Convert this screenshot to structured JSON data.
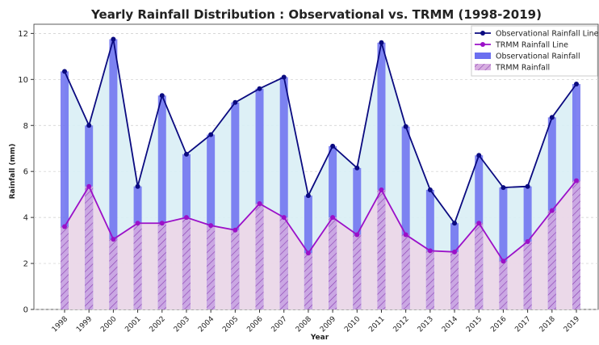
{
  "chart_data": {
    "type": "bar_line",
    "title": "Yearly Rainfall Distribution : Observational vs. TRMM (1998-2019)",
    "x_label": "Year",
    "y_label": "Rainfall (mm)",
    "categories": [
      "1998",
      "1999",
      "2000",
      "2001",
      "2002",
      "2003",
      "2004",
      "2005",
      "2006",
      "2007",
      "2008",
      "2009",
      "2010",
      "2011",
      "2012",
      "2013",
      "2014",
      "2015",
      "2016",
      "2017",
      "2018",
      "2019"
    ],
    "series": [
      {
        "name": "Observational Rainfall Line",
        "kind": "line",
        "color": "#0a0a80",
        "fill": "#d9eef5",
        "values": [
          10.35,
          8.0,
          11.75,
          5.35,
          9.3,
          6.75,
          7.6,
          9.0,
          9.6,
          10.1,
          4.95,
          7.1,
          6.15,
          11.6,
          7.95,
          5.2,
          3.75,
          6.7,
          5.3,
          5.35,
          8.35,
          9.8
        ]
      },
      {
        "name": "TRMM Rainfall Line",
        "kind": "line",
        "color": "#9b10c8",
        "fill": "#ecd6e8",
        "values": [
          3.6,
          5.35,
          3.05,
          3.75,
          3.75,
          4.0,
          3.65,
          3.45,
          4.6,
          4.0,
          2.45,
          4.0,
          3.25,
          5.2,
          3.25,
          2.55,
          2.5,
          3.75,
          2.1,
          2.95,
          4.3,
          5.6
        ]
      },
      {
        "name": "Observational Rainfall",
        "kind": "bar",
        "color": "#6b6ff0",
        "values": [
          10.35,
          8.0,
          11.75,
          5.35,
          9.3,
          6.75,
          7.6,
          9.0,
          9.6,
          10.1,
          4.95,
          7.1,
          6.15,
          11.6,
          7.95,
          5.2,
          3.75,
          6.7,
          5.3,
          5.35,
          8.35,
          9.8
        ]
      },
      {
        "name": "TRMM Rainfall",
        "kind": "bar",
        "color": "#d7aee0",
        "hatch": "#8a3fb0",
        "values": [
          3.6,
          5.35,
          3.05,
          3.75,
          3.75,
          4.0,
          3.65,
          3.45,
          4.6,
          4.0,
          2.45,
          4.0,
          3.25,
          5.2,
          3.25,
          2.55,
          2.5,
          3.75,
          2.1,
          2.95,
          4.3,
          5.6
        ]
      }
    ],
    "ylim": [
      0,
      12.4
    ],
    "yticks": [
      0,
      2,
      4,
      6,
      8,
      10,
      12
    ],
    "grid": true,
    "legend": "upper right"
  }
}
